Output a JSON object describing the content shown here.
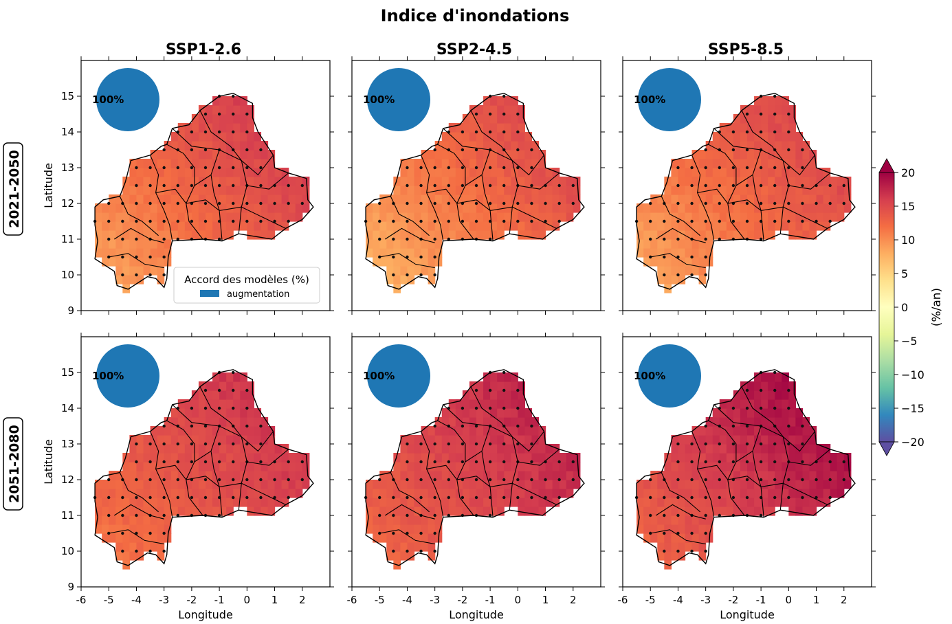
{
  "figure": {
    "title": "Indice d'inondations",
    "columns": [
      "SSP1-2.6",
      "SSP2-4.5",
      "SSP5-8.5"
    ],
    "rows": [
      "2021-2050",
      "2051-2080"
    ],
    "xlabel": "Longitude",
    "ylabel": "Latitude",
    "xticks": [
      "-6",
      "-5",
      "-4",
      "-3",
      "-2",
      "-1",
      "0",
      "1",
      "2"
    ],
    "yticks": [
      "9",
      "10",
      "11",
      "12",
      "13",
      "14",
      "15"
    ],
    "agreement_text": "100%",
    "legend": {
      "title": "Accord des modèles (%)",
      "entry": "augmentation",
      "color": "#1f77b4"
    }
  },
  "colorbar": {
    "label": "(%/an)",
    "ticks": [
      "20",
      "15",
      "10",
      "5",
      "0",
      "−5",
      "−10",
      "−15",
      "−20"
    ],
    "range": [
      -20,
      20
    ],
    "extend": "both",
    "colormap": "Spectral_r"
  },
  "chart_data": {
    "type": "heatmap",
    "xlim": [
      -6,
      3
    ],
    "ylim": [
      9,
      16
    ],
    "grid": false,
    "panels": [
      {
        "row": "2021-2050",
        "column": "SSP1-2.6",
        "agreement": "100%",
        "south_west": 8,
        "north_east": 18
      },
      {
        "row": "2021-2050",
        "column": "SSP2-4.5",
        "agreement": "100%",
        "south_west": 7,
        "north_east": 17
      },
      {
        "row": "2021-2050",
        "column": "SSP5-8.5",
        "agreement": "100%",
        "south_west": 8,
        "north_east": 17
      },
      {
        "row": "2051-2080",
        "column": "SSP1-2.6",
        "agreement": "100%",
        "south_west": 11,
        "north_east": 18
      },
      {
        "row": "2051-2080",
        "column": "SSP2-4.5",
        "agreement": "100%",
        "south_west": 12,
        "north_east": 19
      },
      {
        "row": "2051-2080",
        "column": "SSP5-8.5",
        "agreement": "100%",
        "south_west": 12,
        "north_east": 21
      }
    ]
  }
}
